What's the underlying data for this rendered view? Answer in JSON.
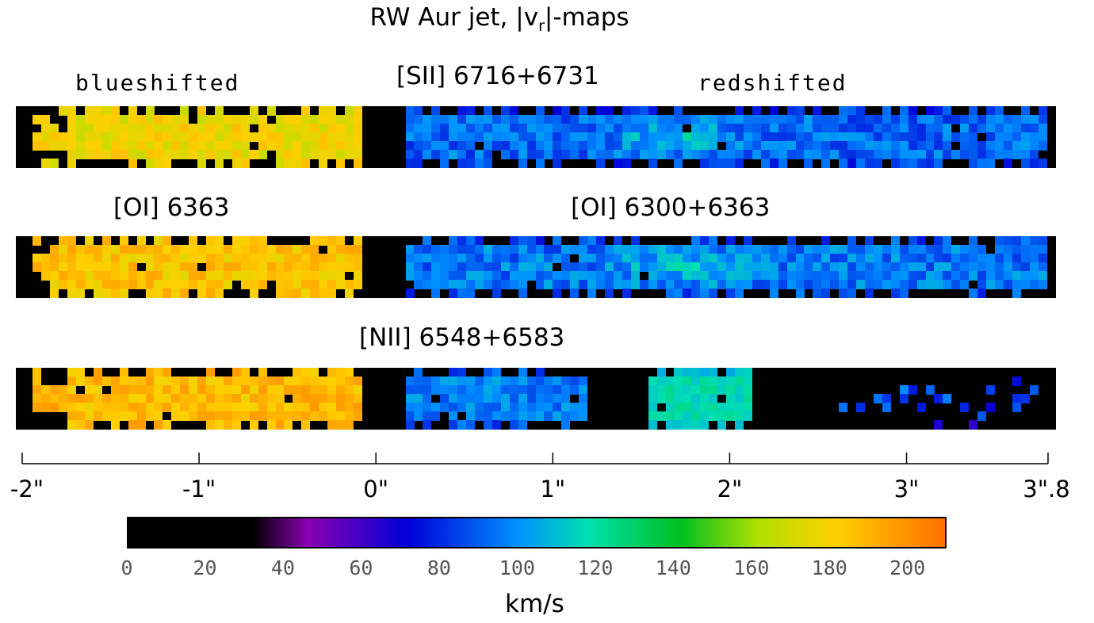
{
  "title": {
    "main": "RW Aur jet, |v",
    "sub": "r",
    "end": "|-maps"
  },
  "labels": {
    "blueshifted": "blueshifted",
    "redshifted": "redshifted",
    "sii": "[SII] 6716+6731",
    "oi_blue": "[OI] 6363",
    "oi_red": "[OI] 6300+6363",
    "nii": "[NII] 6548+6583"
  },
  "chart_data": {
    "type": "heatmap",
    "title": "RW Aur jet, |v_r|-maps",
    "x_axis": {
      "range": [
        -2,
        3.8
      ],
      "ticks": [
        {
          "value": -2,
          "label": "-2\""
        },
        {
          "value": -1,
          "label": "-1\""
        },
        {
          "value": 0,
          "label": "0\""
        },
        {
          "value": 1,
          "label": "1\""
        },
        {
          "value": 2,
          "label": "2\""
        },
        {
          "value": 3,
          "label": "3\""
        },
        {
          "value": 3.8,
          "label": "3\".8"
        }
      ]
    },
    "colorbar": {
      "label": "km/s",
      "range": [
        0,
        210
      ],
      "ticks": [
        0,
        20,
        40,
        60,
        80,
        100,
        120,
        140,
        160,
        180,
        200
      ],
      "stops": [
        {
          "value": 0,
          "color": "#000000"
        },
        {
          "value": 32,
          "color": "#000000"
        },
        {
          "value": 46,
          "color": "#8a00b0"
        },
        {
          "value": 72,
          "color": "#0000d8"
        },
        {
          "value": 100,
          "color": "#0090ff"
        },
        {
          "value": 118,
          "color": "#00e0b0"
        },
        {
          "value": 142,
          "color": "#00c020"
        },
        {
          "value": 162,
          "color": "#b0e000"
        },
        {
          "value": 182,
          "color": "#ffd000"
        },
        {
          "value": 210,
          "color": "#ff7000"
        }
      ]
    },
    "maps": [
      {
        "name": "[SII] 6716+6731",
        "regions": [
          {
            "side": "blueshifted",
            "x_range": [
              -1.95,
              -0.1
            ],
            "mean_velocity": 178,
            "spread": 10
          },
          {
            "side": "redshifted",
            "x_range": [
              0.15,
              3.8
            ],
            "mean_velocity": 92,
            "spread": 12,
            "core": {
              "x": 1.7,
              "velocity": 112
            }
          }
        ]
      },
      {
        "name": "[OI] 6363 / [OI] 6300+6363",
        "regions": [
          {
            "side": "blueshifted",
            "x_range": [
              -1.95,
              -0.1
            ],
            "mean_velocity": 185,
            "spread": 10
          },
          {
            "side": "redshifted",
            "x_range": [
              0.15,
              3.8
            ],
            "mean_velocity": 95,
            "spread": 12,
            "core": {
              "x": 1.7,
              "velocity": 110
            }
          }
        ]
      },
      {
        "name": "[NII] 6548+6583",
        "regions": [
          {
            "side": "blueshifted",
            "x_range": [
              -1.95,
              -0.1
            ],
            "mean_velocity": 188,
            "spread": 10
          },
          {
            "side": "redshifted",
            "x_range": [
              0.15,
              1.2
            ],
            "mean_velocity": 96,
            "spread": 10
          },
          {
            "side": "redshifted",
            "x_range": [
              1.55,
              2.15
            ],
            "mean_velocity": 118,
            "spread": 6
          },
          {
            "side": "redshifted",
            "x_range": [
              2.6,
              3.8
            ],
            "mean_velocity": 85,
            "spread": 15,
            "sparse": true
          }
        ]
      }
    ]
  }
}
